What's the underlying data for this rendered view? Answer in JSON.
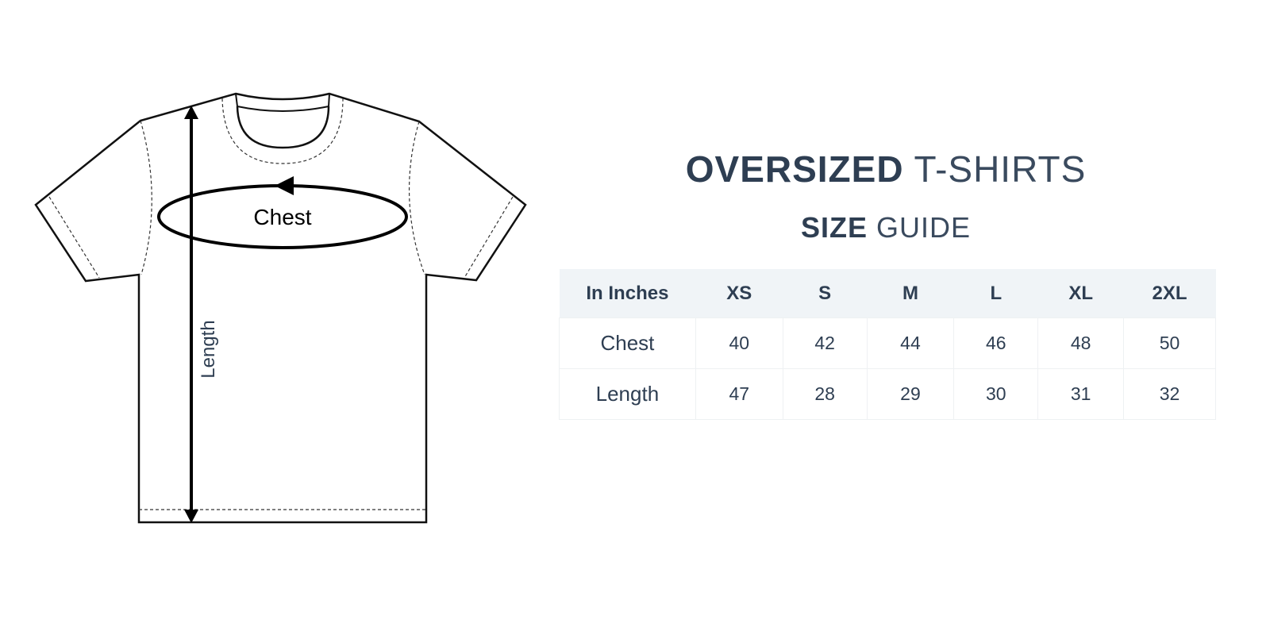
{
  "diagram": {
    "chest_label": "Chest",
    "length_label": "Length"
  },
  "title": {
    "bold": "OVERSIZED",
    "light": "T-SHIRTS"
  },
  "subtitle": {
    "bold": "SIZE",
    "light": "GUIDE"
  },
  "table": {
    "headers": [
      "In Inches",
      "XS",
      "S",
      "M",
      "L",
      "XL",
      "2XL"
    ],
    "rows": [
      {
        "label": "Chest",
        "values": [
          "40",
          "42",
          "44",
          "46",
          "48",
          "50"
        ]
      },
      {
        "label": "Length",
        "values": [
          "47",
          "28",
          "29",
          "30",
          "31",
          "32"
        ]
      }
    ]
  },
  "colors": {
    "text": "#2e3e52",
    "header_bg": "#f0f4f7"
  }
}
